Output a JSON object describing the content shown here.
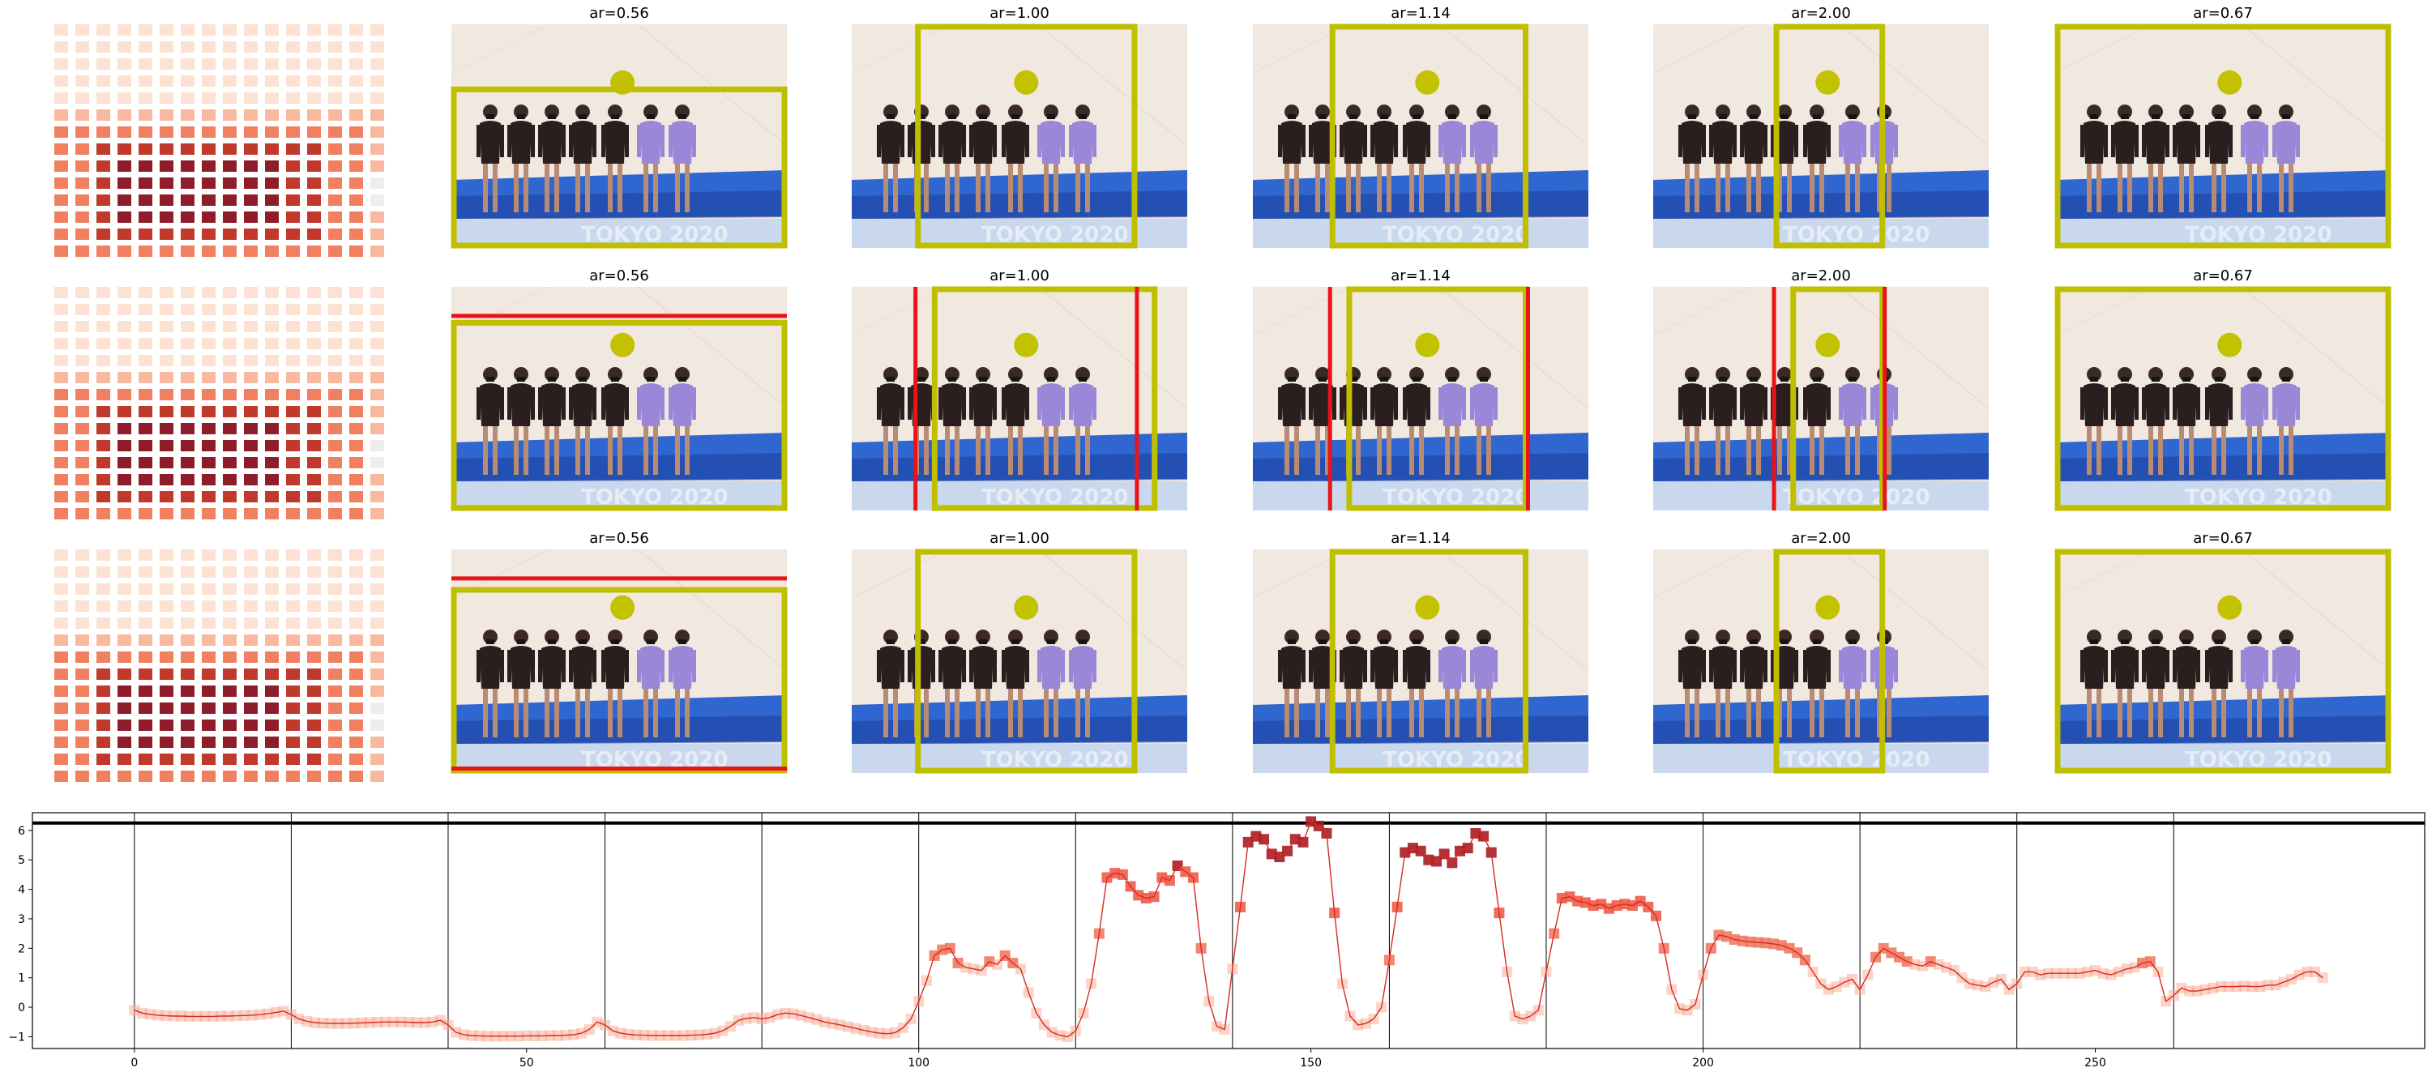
{
  "colors": {
    "crop_box": "#bfbf00",
    "crop_box_red": "#e8141a",
    "salience_dot": "#c2c200",
    "line": "#d62a22",
    "marker_light": "#f7a890",
    "marker_mid": "#ef5c48",
    "marker_dark": "#a81d25",
    "floor": "#efe6de",
    "mat": "#2f66cf",
    "mat_dark": "#1b3e9c",
    "suit_dark": "#2a1e1e",
    "suit_purple": "#9a87d8"
  },
  "icons": {
    "heatmap": "salience-heatmap-icon",
    "photo": "gymnastics-team-photo"
  },
  "panel_titles": [
    "ar=0.56",
    "ar=1.00",
    "ar=1.14",
    "ar=2.00",
    "ar=0.67"
  ],
  "grid_rows": 3,
  "chart_data": {
    "type": "line",
    "xlim": [
      -13,
      292
    ],
    "ylim": [
      -1.4,
      6.6
    ],
    "xticks": [
      0,
      50,
      100,
      150,
      200,
      250
    ],
    "yticks": [
      -1,
      0,
      1,
      2,
      3,
      4,
      5,
      6
    ],
    "grid": false,
    "vlines": [
      0,
      20,
      40,
      60,
      80,
      100,
      120,
      140,
      160,
      180,
      200,
      220,
      240,
      260
    ],
    "hline": 6.25,
    "series": [
      {
        "x_start": 0,
        "x_step": 1,
        "y": [
          -0.1,
          -0.2,
          -0.24,
          -0.27,
          -0.29,
          -0.3,
          -0.3,
          -0.31,
          -0.31,
          -0.31,
          -0.31,
          -0.3,
          -0.3,
          -0.29,
          -0.28,
          -0.27,
          -0.25,
          -0.22,
          -0.18,
          -0.13,
          -0.25,
          -0.4,
          -0.48,
          -0.52,
          -0.54,
          -0.55,
          -0.55,
          -0.55,
          -0.54,
          -0.53,
          -0.52,
          -0.51,
          -0.5,
          -0.5,
          -0.5,
          -0.51,
          -0.52,
          -0.52,
          -0.5,
          -0.44,
          -0.6,
          -0.85,
          -0.93,
          -0.96,
          -0.97,
          -0.98,
          -0.98,
          -0.98,
          -0.98,
          -0.98,
          -0.97,
          -0.97,
          -0.97,
          -0.96,
          -0.96,
          -0.95,
          -0.93,
          -0.88,
          -0.75,
          -0.5,
          -0.6,
          -0.8,
          -0.88,
          -0.92,
          -0.94,
          -0.95,
          -0.96,
          -0.96,
          -0.96,
          -0.96,
          -0.96,
          -0.95,
          -0.94,
          -0.92,
          -0.88,
          -0.8,
          -0.65,
          -0.45,
          -0.38,
          -0.35,
          -0.4,
          -0.35,
          -0.25,
          -0.2,
          -0.22,
          -0.28,
          -0.35,
          -0.42,
          -0.5,
          -0.55,
          -0.6,
          -0.66,
          -0.72,
          -0.78,
          -0.84,
          -0.88,
          -0.9,
          -0.86,
          -0.7,
          -0.4,
          0.2,
          0.9,
          1.75,
          1.95,
          2.0,
          1.5,
          1.35,
          1.3,
          1.25,
          1.55,
          1.45,
          1.75,
          1.5,
          1.3,
          0.5,
          -0.2,
          -0.6,
          -0.85,
          -0.95,
          -1.0,
          -0.8,
          -0.2,
          0.8,
          2.5,
          4.4,
          4.55,
          4.5,
          4.1,
          3.8,
          3.7,
          3.75,
          4.4,
          4.3,
          4.8,
          4.6,
          4.4,
          2.0,
          0.2,
          -0.65,
          -0.75,
          1.3,
          3.4,
          5.6,
          5.8,
          5.7,
          5.2,
          5.1,
          5.3,
          5.7,
          5.6,
          6.3,
          6.15,
          5.9,
          3.2,
          0.8,
          -0.3,
          -0.6,
          -0.55,
          -0.4,
          0.0,
          1.6,
          3.4,
          5.25,
          5.4,
          5.3,
          5.0,
          4.95,
          5.2,
          4.9,
          5.3,
          5.4,
          5.9,
          5.8,
          5.25,
          3.2,
          1.2,
          -0.3,
          -0.4,
          -0.3,
          -0.1,
          1.2,
          2.5,
          3.7,
          3.75,
          3.6,
          3.55,
          3.45,
          3.5,
          3.35,
          3.45,
          3.5,
          3.45,
          3.6,
          3.4,
          3.1,
          2.0,
          0.6,
          -0.05,
          -0.1,
          0.1,
          1.1,
          2.0,
          2.45,
          2.4,
          2.3,
          2.25,
          2.22,
          2.2,
          2.18,
          2.15,
          2.1,
          2.0,
          1.85,
          1.6,
          1.2,
          0.8,
          0.6,
          0.7,
          0.85,
          0.95,
          0.6,
          1.1,
          1.7,
          2.0,
          1.85,
          1.7,
          1.55,
          1.45,
          1.4,
          1.55,
          1.45,
          1.35,
          1.25,
          1.0,
          0.8,
          0.75,
          0.7,
          0.85,
          0.95,
          0.6,
          0.8,
          1.2,
          1.2,
          1.1,
          1.15,
          1.15,
          1.15,
          1.15,
          1.15,
          1.2,
          1.25,
          1.15,
          1.1,
          1.2,
          1.3,
          1.35,
          1.5,
          1.55,
          1.2,
          0.2,
          0.4,
          0.65,
          0.55,
          0.55,
          0.6,
          0.65,
          0.7,
          0.7,
          0.7,
          0.72,
          0.7,
          0.7,
          0.75,
          0.75,
          0.85,
          0.95,
          1.1,
          1.2,
          1.2,
          1.0
        ]
      }
    ]
  }
}
